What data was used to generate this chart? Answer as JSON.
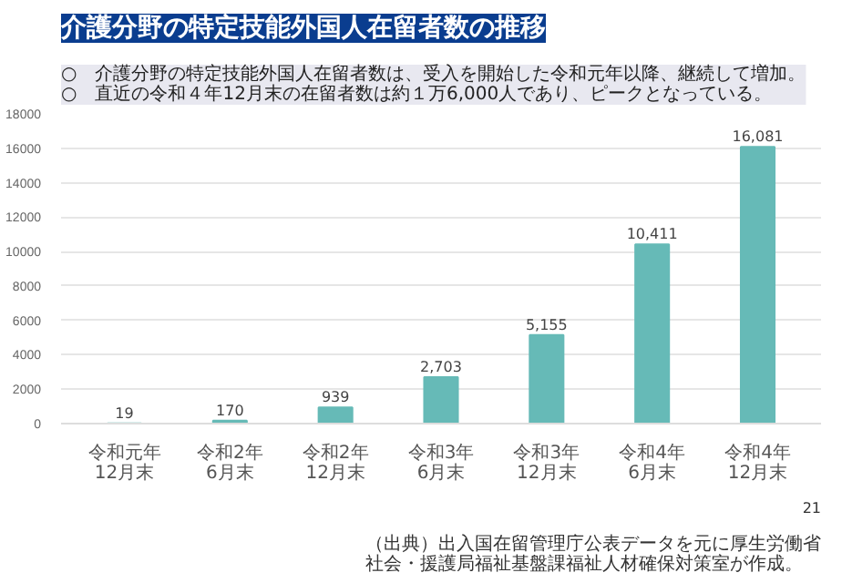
{
  "chart_data": {
    "type": "bar",
    "title": "介護分野の特定技能外国人在留者数の推移",
    "subtitle": "○　介護分野の特定技能外国人在留者数は、受入を開始した令和元年以降、継続して増加。\n○　直近の令和４年12月末の在留者数は約１万6,000人であり、ピークとなっている。",
    "categories": [
      "令和元年12月末",
      "令和2年6月末",
      "令和2年12月末",
      "令和3年6月末",
      "令和3年12月末",
      "令和4年6月末",
      "令和4年12月末"
    ],
    "values": [
      19,
      170,
      939,
      2703,
      5155,
      10411,
      16081
    ],
    "value_labels": [
      "19",
      "170",
      "939",
      "2,703",
      "5,155",
      "10,411",
      "16,081"
    ],
    "color": "#66bab7",
    "ylim": [
      0,
      18000
    ],
    "yticks": [
      0,
      2000,
      4000,
      6000,
      8000,
      10000,
      12000,
      14000,
      16000,
      18000
    ],
    "grid": "y",
    "annotations": [
      "（出典）出入国在留管理庁公表データを元に厚生労働省社会・援護局福祉基盤課福祉人材確保対策室が作成。",
      "21"
    ]
  }
}
